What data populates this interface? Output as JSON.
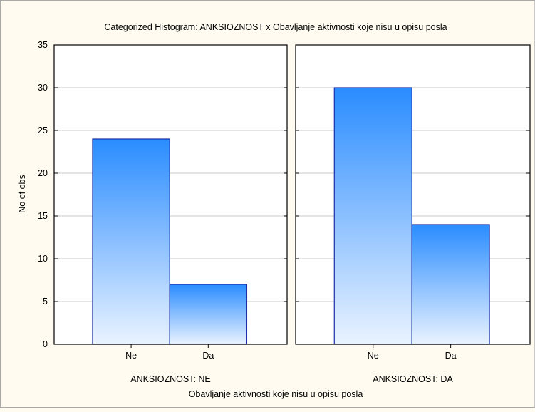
{
  "chart_data": {
    "type": "bar",
    "title": "Categorized Histogram: ANKSIOZNOST x Obavljanje aktivnosti koje nisu u opisu posla",
    "ylabel": "No of obs",
    "xlabel": "Obavljanje aktivnosti koje nisu u opisu posla",
    "ylim": [
      0,
      35
    ],
    "yticks": [
      0,
      5,
      10,
      15,
      20,
      25,
      30,
      35
    ],
    "categories": [
      "Ne",
      "Da"
    ],
    "grid": true,
    "panels": [
      {
        "label": "ANKSIOZNOST: NE",
        "values": [
          24,
          7
        ]
      },
      {
        "label": "ANKSIOZNOST: DA",
        "values": [
          30,
          14
        ]
      }
    ],
    "colors": {
      "bar_top": "#2a8cff",
      "bar_bottom": "#eaf3ff",
      "bar_stroke": "#1a2fa8",
      "background": "#fffbf0",
      "grid": "#c8c8c8"
    }
  }
}
